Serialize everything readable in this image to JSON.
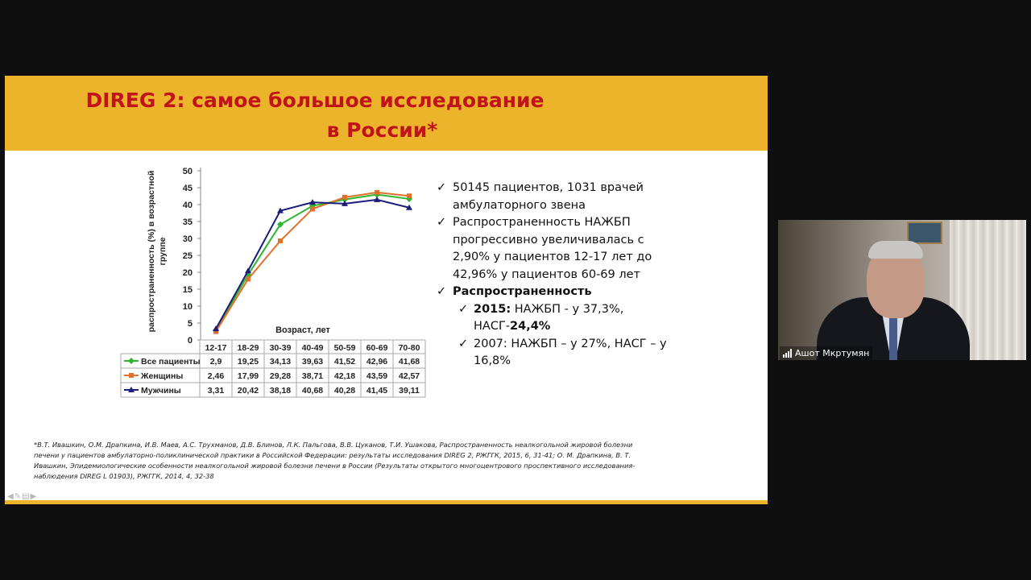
{
  "slide": {
    "title_line1": "DIREG 2: самое большое исследование",
    "title_line2": "в России*",
    "colors": {
      "header": "#ecb42b",
      "title": "#c0141a"
    }
  },
  "chart_data": {
    "type": "line",
    "title": "",
    "xlabel": "Возраст, лет",
    "ylabel": "распространенность (%) в возрастной группе",
    "categories": [
      "12-17",
      "18-29",
      "30-39",
      "40-49",
      "50-59",
      "60-69",
      "70-80"
    ],
    "ylim": [
      0,
      50
    ],
    "yticks": [
      "0",
      "5",
      "10",
      "15",
      "20",
      "25",
      "30",
      "35",
      "40",
      "45",
      "50"
    ],
    "grid": false,
    "legend": "data table below chart",
    "series": [
      {
        "name": "Все пациенты",
        "color": "#2fb52f",
        "marker": "diamond",
        "values": [
          2.9,
          19.25,
          34.13,
          39.63,
          41.52,
          42.96,
          41.68
        ],
        "labels": [
          "2,9",
          "19,25",
          "34,13",
          "39,63",
          "41,52",
          "42,96",
          "41,68"
        ]
      },
      {
        "name": "Женщины",
        "color": "#e0702a",
        "marker": "square",
        "values": [
          2.46,
          17.99,
          29.28,
          38.71,
          42.18,
          43.59,
          42.57
        ],
        "labels": [
          "2,46",
          "17,99",
          "29,28",
          "38,71",
          "42,18",
          "43,59",
          "42,57"
        ]
      },
      {
        "name": "Мужчины",
        "color": "#1c1c7a",
        "marker": "triangle",
        "values": [
          3.31,
          20.42,
          38.18,
          40.68,
          40.28,
          41.45,
          39.11
        ],
        "labels": [
          "3,31",
          "20,42",
          "38,18",
          "40,68",
          "40,28",
          "41,45",
          "39,11"
        ]
      }
    ]
  },
  "bullets": {
    "b1": "50145 пациентов, 1031 врачей амбулаторного звена",
    "b2": "Распространенность НАЖБП прогрессивно увеличивалась с 2,90% у пациентов 12-17 лет до 42,96% у пациентов 60-69 лет",
    "b3": "Распространенность",
    "s1_year": "2015:",
    "s1_text": " НАЖБП - у 37,3%, НАСГ-",
    "s1_bold": "24,4%",
    "s2": "2007: НАЖБП – у 27%, НАСГ – у 16,8%"
  },
  "footnote": "*В.Т. Ивашкин, О.М. Драпкина, И.В. Маев, А.С. Трухманов, Д.В. Блинов, Л.К. Пальгова, В.В. Цуканов, Т.И. Ушакова, Распространенность неалкогольной жировой болезни печени у пациентов амбулаторно-поликлинической практики в Российской Федерации: результаты исследования DIREG 2, РЖГГК, 2015, 6, 31-41; О. М. Драпкина, В. Т. Ивашкин, Эпидемиологические особенности неалкогольной жировой болезни печени в России (Результаты открытого многоцентрового проспективного исследования-наблюдения DIREG L 01903), РЖГГК, 2014, 4, 32-38",
  "video": {
    "participant_name": "Ашот Мкртумян",
    "icon": "signal-bars-icon"
  },
  "controls": {
    "icons": [
      "back-arrow-icon",
      "pen-icon",
      "slides-icon",
      "forward-arrow-icon"
    ]
  }
}
